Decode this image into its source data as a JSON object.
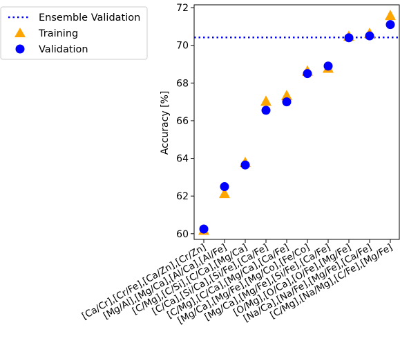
{
  "chart_data": {
    "type": "scatter",
    "title": "",
    "xlabel": "",
    "ylabel": "Accuracy [%]",
    "ylim": [
      59.7,
      72.15
    ],
    "yticks": [
      60,
      62,
      64,
      66,
      68,
      70,
      72
    ],
    "grid": false,
    "legend_position": "outside-top-left",
    "categories": [
      "[Ca/Cr],[Cr/Fe],[Ca/Zn],[Cr/Zn]",
      "[Mg/Al],[Mg/Ca],[Al/Ca],[Al/Fe]",
      "[C/Mg],[C/Si],[C/Ca],[Mg/Ca]",
      "[C/Ca],[Si/Ca],[Si/Fe],[Ca/Fe]",
      "[C/Mg],[C/Ca],[Mg/Ca],[Ca/Fe]",
      "[Mg/Ca],[Mg/Fe],[Mg/Co],[Fe/Co]",
      "[Mg/Ca],[Mg/Fe],[Si/Fe],[Ca/Fe]",
      "[O/Mg],[O/Ca],[O/Fe],[Mg/Fe]",
      "[Na/Ca],[Na/Fe],[Mg/Fe],[Ca/Fe]",
      "[C/Mg],[Na/Mg],[C/Fe],[Mg/Fe]"
    ],
    "series": [
      {
        "name": "Training",
        "marker": "triangle",
        "color": "#FFA500",
        "values": [
          60.15,
          62.1,
          63.75,
          67.0,
          67.3,
          68.6,
          68.75,
          70.45,
          70.6,
          71.55
        ]
      },
      {
        "name": "Validation",
        "marker": "circle",
        "color": "#0000FF",
        "values": [
          60.25,
          62.5,
          63.65,
          66.55,
          67.0,
          68.5,
          68.9,
          70.4,
          70.5,
          71.1
        ]
      }
    ],
    "reference_lines": [
      {
        "name": "Ensemble Validation",
        "y": 70.42,
        "style": "dotted",
        "color": "#0000FF"
      }
    ]
  }
}
